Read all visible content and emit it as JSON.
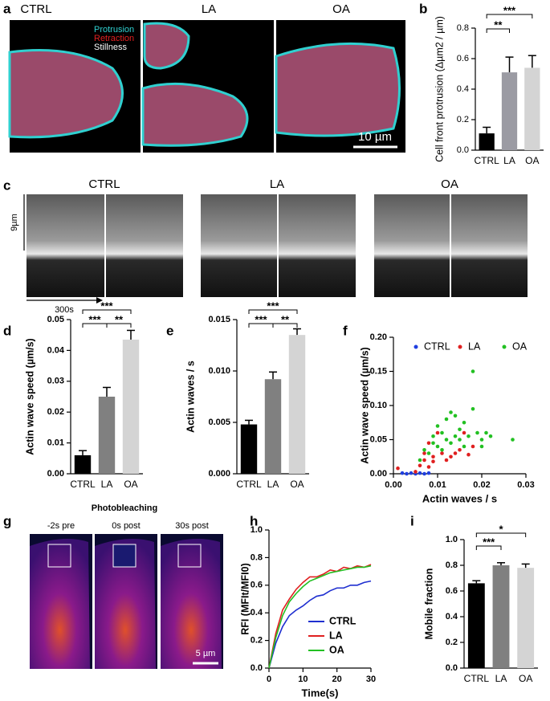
{
  "images": {
    "a": {
      "label": "a",
      "columns": [
        "CTRL",
        "LA",
        "OA"
      ],
      "legend": [
        "Protrusion",
        "Retraction",
        "Stillness"
      ],
      "scale_bar": "10 µm"
    },
    "c": {
      "label": "c",
      "columns": [
        "CTRL",
        "LA",
        "OA"
      ],
      "y_label": "9µm",
      "x_label": "300s"
    },
    "g": {
      "label": "g",
      "title": "Photobleaching",
      "columns": [
        "-2s pre",
        "0s post",
        "30s post"
      ],
      "scale_bar": "5 µm"
    }
  },
  "chart_data": [
    {
      "type": "bar",
      "label": "b",
      "y_label": "Cell front protrusion (Δµm2 / µm)",
      "categories": [
        "CTRL",
        "LA",
        "OA"
      ],
      "values": [
        0.11,
        0.51,
        0.54
      ],
      "errors": [
        0.04,
        0.1,
        0.08
      ],
      "colors": [
        "#000000",
        "#9b9ba3",
        "#d4d4d4"
      ],
      "ylim": [
        0,
        0.8
      ],
      "yticks": [
        {
          "value": 0,
          "label": "0.0"
        },
        0.2,
        0.4,
        0.6,
        0.8
      ],
      "annotations": [
        "***",
        "**"
      ]
    },
    {
      "type": "bar",
      "label": "d",
      "y_label": "Actin wave speed (µm/s)",
      "categories": [
        "CTRL",
        "LA",
        "OA"
      ],
      "values": [
        0.006,
        0.025,
        0.0435
      ],
      "errors": [
        0.0015,
        0.003,
        0.003
      ],
      "colors": [
        "#000000",
        "#808080",
        "#d4d4d4"
      ],
      "ylim": [
        0,
        0.05
      ],
      "yticks": [
        {
          "value": 0,
          "label": "0.00"
        },
        0.01,
        0.02,
        0.03,
        0.04,
        0.05
      ],
      "annotations": [
        "***",
        "***",
        "**"
      ]
    },
    {
      "type": "bar",
      "label": "e",
      "y_label": "Actin waves / s",
      "categories": [
        "CTRL",
        "LA",
        "OA"
      ],
      "values": [
        0.0048,
        0.0092,
        0.0135
      ],
      "errors": [
        0.0004,
        0.0007,
        0.0006
      ],
      "colors": [
        "#000000",
        "#808080",
        "#d4d4d4"
      ],
      "ylim": [
        0,
        0.015
      ],
      "yticks": [
        {
          "value": 0,
          "label": "0.000"
        },
        0.005,
        {
          "value": 0.01,
          "label": "0.010"
        },
        0.015
      ],
      "annotations": [
        "***",
        "***",
        "**"
      ]
    },
    {
      "type": "scatter",
      "label": "f",
      "x_label": "Actin waves / s",
      "y_label": "Actin wave speed (µm/s)",
      "legend": "top",
      "xlim": [
        0,
        0.03
      ],
      "xticks": [
        {
          "value": 0,
          "label": "0.00"
        },
        0.01,
        0.02,
        0.03
      ],
      "ylim": [
        0,
        0.2
      ],
      "yticks": [
        {
          "value": 0,
          "label": "0.00"
        },
        0.05,
        {
          "value": 0.1,
          "label": "0.10"
        },
        0.15,
        {
          "value": 0.2,
          "label": "0.20"
        }
      ],
      "series": [
        {
          "name": "CTRL",
          "color": "#1f3fe0",
          "x": [
            0.002,
            0.003,
            0.004,
            0.005,
            0.006,
            0.007,
            0.008
          ],
          "values": [
            0.001,
            0,
            0.001,
            0,
            0.001,
            0,
            0.001
          ]
        },
        {
          "name": "LA",
          "color": "#e02020",
          "x": [
            0.001,
            0.005,
            0.006,
            0.007,
            0.007,
            0.008,
            0.008,
            0.009,
            0.009,
            0.01,
            0.011,
            0.012,
            0.013,
            0.014,
            0.015,
            0.016,
            0.017,
            0.018
          ],
          "values": [
            0.008,
            0.003,
            0.012,
            0.02,
            0.03,
            0.01,
            0.045,
            0.018,
            0.025,
            0.06,
            0.03,
            0.02,
            0.025,
            0.03,
            0.035,
            0.06,
            0.028,
            0.04
          ]
        },
        {
          "name": "OA",
          "color": "#22c022",
          "x": [
            0.006,
            0.007,
            0.008,
            0.009,
            0.009,
            0.01,
            0.01,
            0.011,
            0.011,
            0.012,
            0.012,
            0.013,
            0.013,
            0.014,
            0.014,
            0.015,
            0.015,
            0.016,
            0.016,
            0.017,
            0.018,
            0.018,
            0.019,
            0.02,
            0.02,
            0.021,
            0.022,
            0.027
          ],
          "values": [
            0.02,
            0.035,
            0.03,
            0.045,
            0.055,
            0.04,
            0.07,
            0.035,
            0.06,
            0.05,
            0.08,
            0.045,
            0.09,
            0.055,
            0.085,
            0.05,
            0.065,
            0.075,
            0.04,
            0.055,
            0.15,
            0.095,
            0.06,
            0.05,
            0.04,
            0.06,
            0.055,
            0.05
          ]
        }
      ]
    },
    {
      "type": "line",
      "label": "h",
      "x_label": "Time(s)",
      "y_label": "RFI (MFIt/MFI0)",
      "legend": "lower right",
      "x": [
        0,
        2,
        4,
        6,
        8,
        10,
        12,
        14,
        16,
        18,
        20,
        22,
        24,
        26,
        28,
        30
      ],
      "xlim": [
        0,
        30
      ],
      "xticks": [
        0,
        10,
        20,
        30
      ],
      "ylim": [
        0,
        1
      ],
      "yticks": [
        {
          "value": 0,
          "label": "0.0"
        },
        0.2,
        0.4,
        0.6,
        0.8,
        {
          "value": 1,
          "label": "1.0"
        }
      ],
      "series": [
        {
          "name": "CTRL",
          "color": "#1f2fd0",
          "values": [
            0,
            0.18,
            0.3,
            0.38,
            0.42,
            0.45,
            0.49,
            0.52,
            0.53,
            0.56,
            0.58,
            0.58,
            0.6,
            0.6,
            0.62,
            0.63
          ]
        },
        {
          "name": "LA",
          "color": "#e02020",
          "values": [
            0,
            0.25,
            0.42,
            0.5,
            0.57,
            0.62,
            0.66,
            0.66,
            0.68,
            0.71,
            0.7,
            0.73,
            0.72,
            0.74,
            0.73,
            0.75
          ]
        },
        {
          "name": "OA",
          "color": "#22c022",
          "values": [
            0,
            0.22,
            0.38,
            0.48,
            0.54,
            0.59,
            0.63,
            0.65,
            0.67,
            0.69,
            0.7,
            0.71,
            0.72,
            0.73,
            0.73,
            0.74
          ]
        }
      ]
    },
    {
      "type": "bar",
      "label": "i",
      "y_label": "Mobile fraction",
      "categories": [
        "CTRL",
        "LA",
        "OA"
      ],
      "values": [
        0.66,
        0.8,
        0.78
      ],
      "errors": [
        0.02,
        0.02,
        0.03
      ],
      "colors": [
        "#000000",
        "#808080",
        "#d4d4d4"
      ],
      "ylim": [
        0,
        1
      ],
      "yticks": [
        {
          "value": 0,
          "label": "0.0"
        },
        0.2,
        0.4,
        0.6,
        0.8,
        {
          "value": 1,
          "label": "1.0"
        }
      ],
      "annotations": [
        "*",
        "***"
      ]
    }
  ]
}
